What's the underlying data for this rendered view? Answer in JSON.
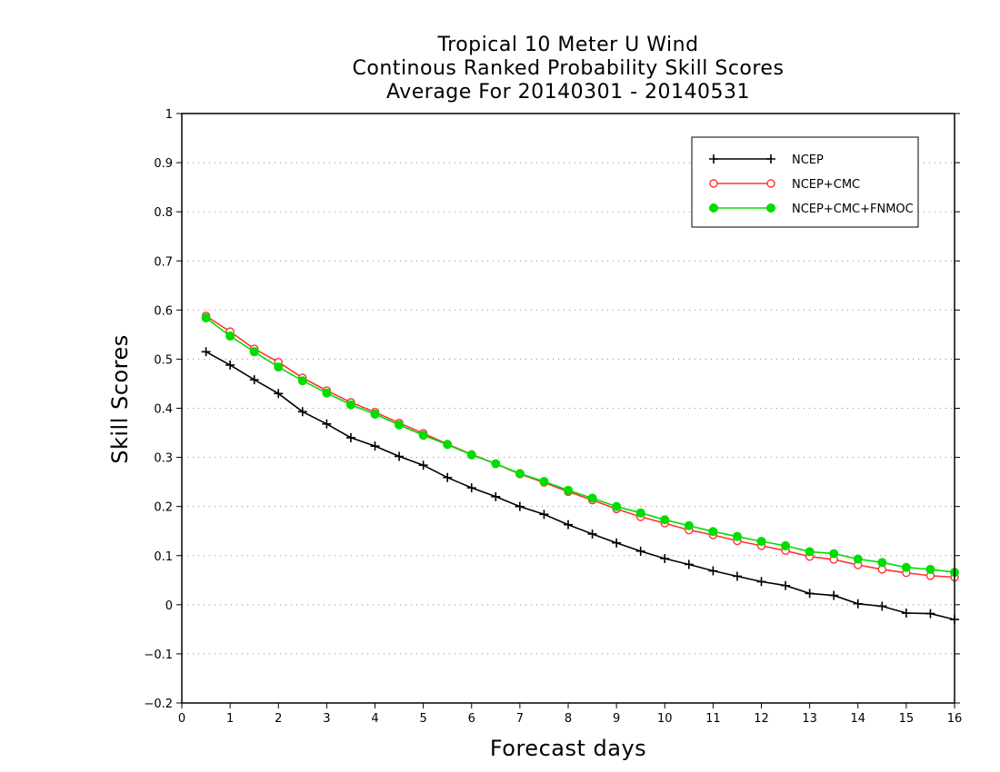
{
  "chart_data": {
    "type": "line",
    "title": [
      "Tropical 10 Meter U Wind",
      "Continous Ranked Probability Skill Scores",
      "Average For 20140301 - 20140531"
    ],
    "xlabel": "Forecast days",
    "ylabel": "Skill Scores",
    "xlim": [
      0,
      16
    ],
    "ylim": [
      -0.2,
      1
    ],
    "xticks": [
      "0",
      "1",
      "2",
      "3",
      "4",
      "5",
      "6",
      "7",
      "8",
      "9",
      "10",
      "11",
      "12",
      "13",
      "14",
      "15",
      "16"
    ],
    "yticks": [
      "−0.2",
      "−0.1",
      "0",
      "0.1",
      "0.2",
      "0.3",
      "0.4",
      "0.5",
      "0.6",
      "0.7",
      "0.8",
      "0.9",
      "1"
    ],
    "grid": "horizontal-dotted",
    "legend_position": "top-right",
    "x": [
      0.5,
      1,
      1.5,
      2,
      2.5,
      3,
      3.5,
      4,
      4.5,
      5,
      5.5,
      6,
      6.5,
      7,
      7.5,
      8,
      8.5,
      9,
      9.5,
      10,
      10.5,
      11,
      11.5,
      12,
      12.5,
      13,
      13.5,
      14,
      14.5,
      15,
      15.5,
      16
    ],
    "series": [
      {
        "name": "NCEP",
        "color": "#000000",
        "marker": "plus",
        "values": [
          0.515,
          0.488,
          0.458,
          0.43,
          0.393,
          0.368,
          0.34,
          0.323,
          0.302,
          0.284,
          0.259,
          0.238,
          0.22,
          0.2,
          0.184,
          0.163,
          0.144,
          0.126,
          0.109,
          0.094,
          0.082,
          0.069,
          0.058,
          0.047,
          0.039,
          0.023,
          0.019,
          0.002,
          -0.003,
          -0.017,
          -0.018,
          -0.03
        ]
      },
      {
        "name": "NCEP+CMC",
        "color": "#ff3333",
        "marker": "open-circle",
        "values": [
          0.588,
          0.556,
          0.521,
          0.494,
          0.462,
          0.436,
          0.412,
          0.392,
          0.37,
          0.349,
          0.327,
          0.306,
          0.287,
          0.266,
          0.249,
          0.23,
          0.213,
          0.195,
          0.179,
          0.166,
          0.152,
          0.142,
          0.13,
          0.12,
          0.11,
          0.098,
          0.092,
          0.081,
          0.072,
          0.065,
          0.059,
          0.056
        ]
      },
      {
        "name": "NCEP+CMC+FNMOC",
        "color": "#00dd00",
        "marker": "filled-circle",
        "values": [
          0.584,
          0.547,
          0.515,
          0.484,
          0.456,
          0.431,
          0.407,
          0.388,
          0.366,
          0.345,
          0.326,
          0.305,
          0.287,
          0.267,
          0.251,
          0.233,
          0.217,
          0.2,
          0.187,
          0.173,
          0.161,
          0.149,
          0.139,
          0.129,
          0.12,
          0.108,
          0.104,
          0.093,
          0.086,
          0.076,
          0.072,
          0.066
        ]
      }
    ]
  }
}
